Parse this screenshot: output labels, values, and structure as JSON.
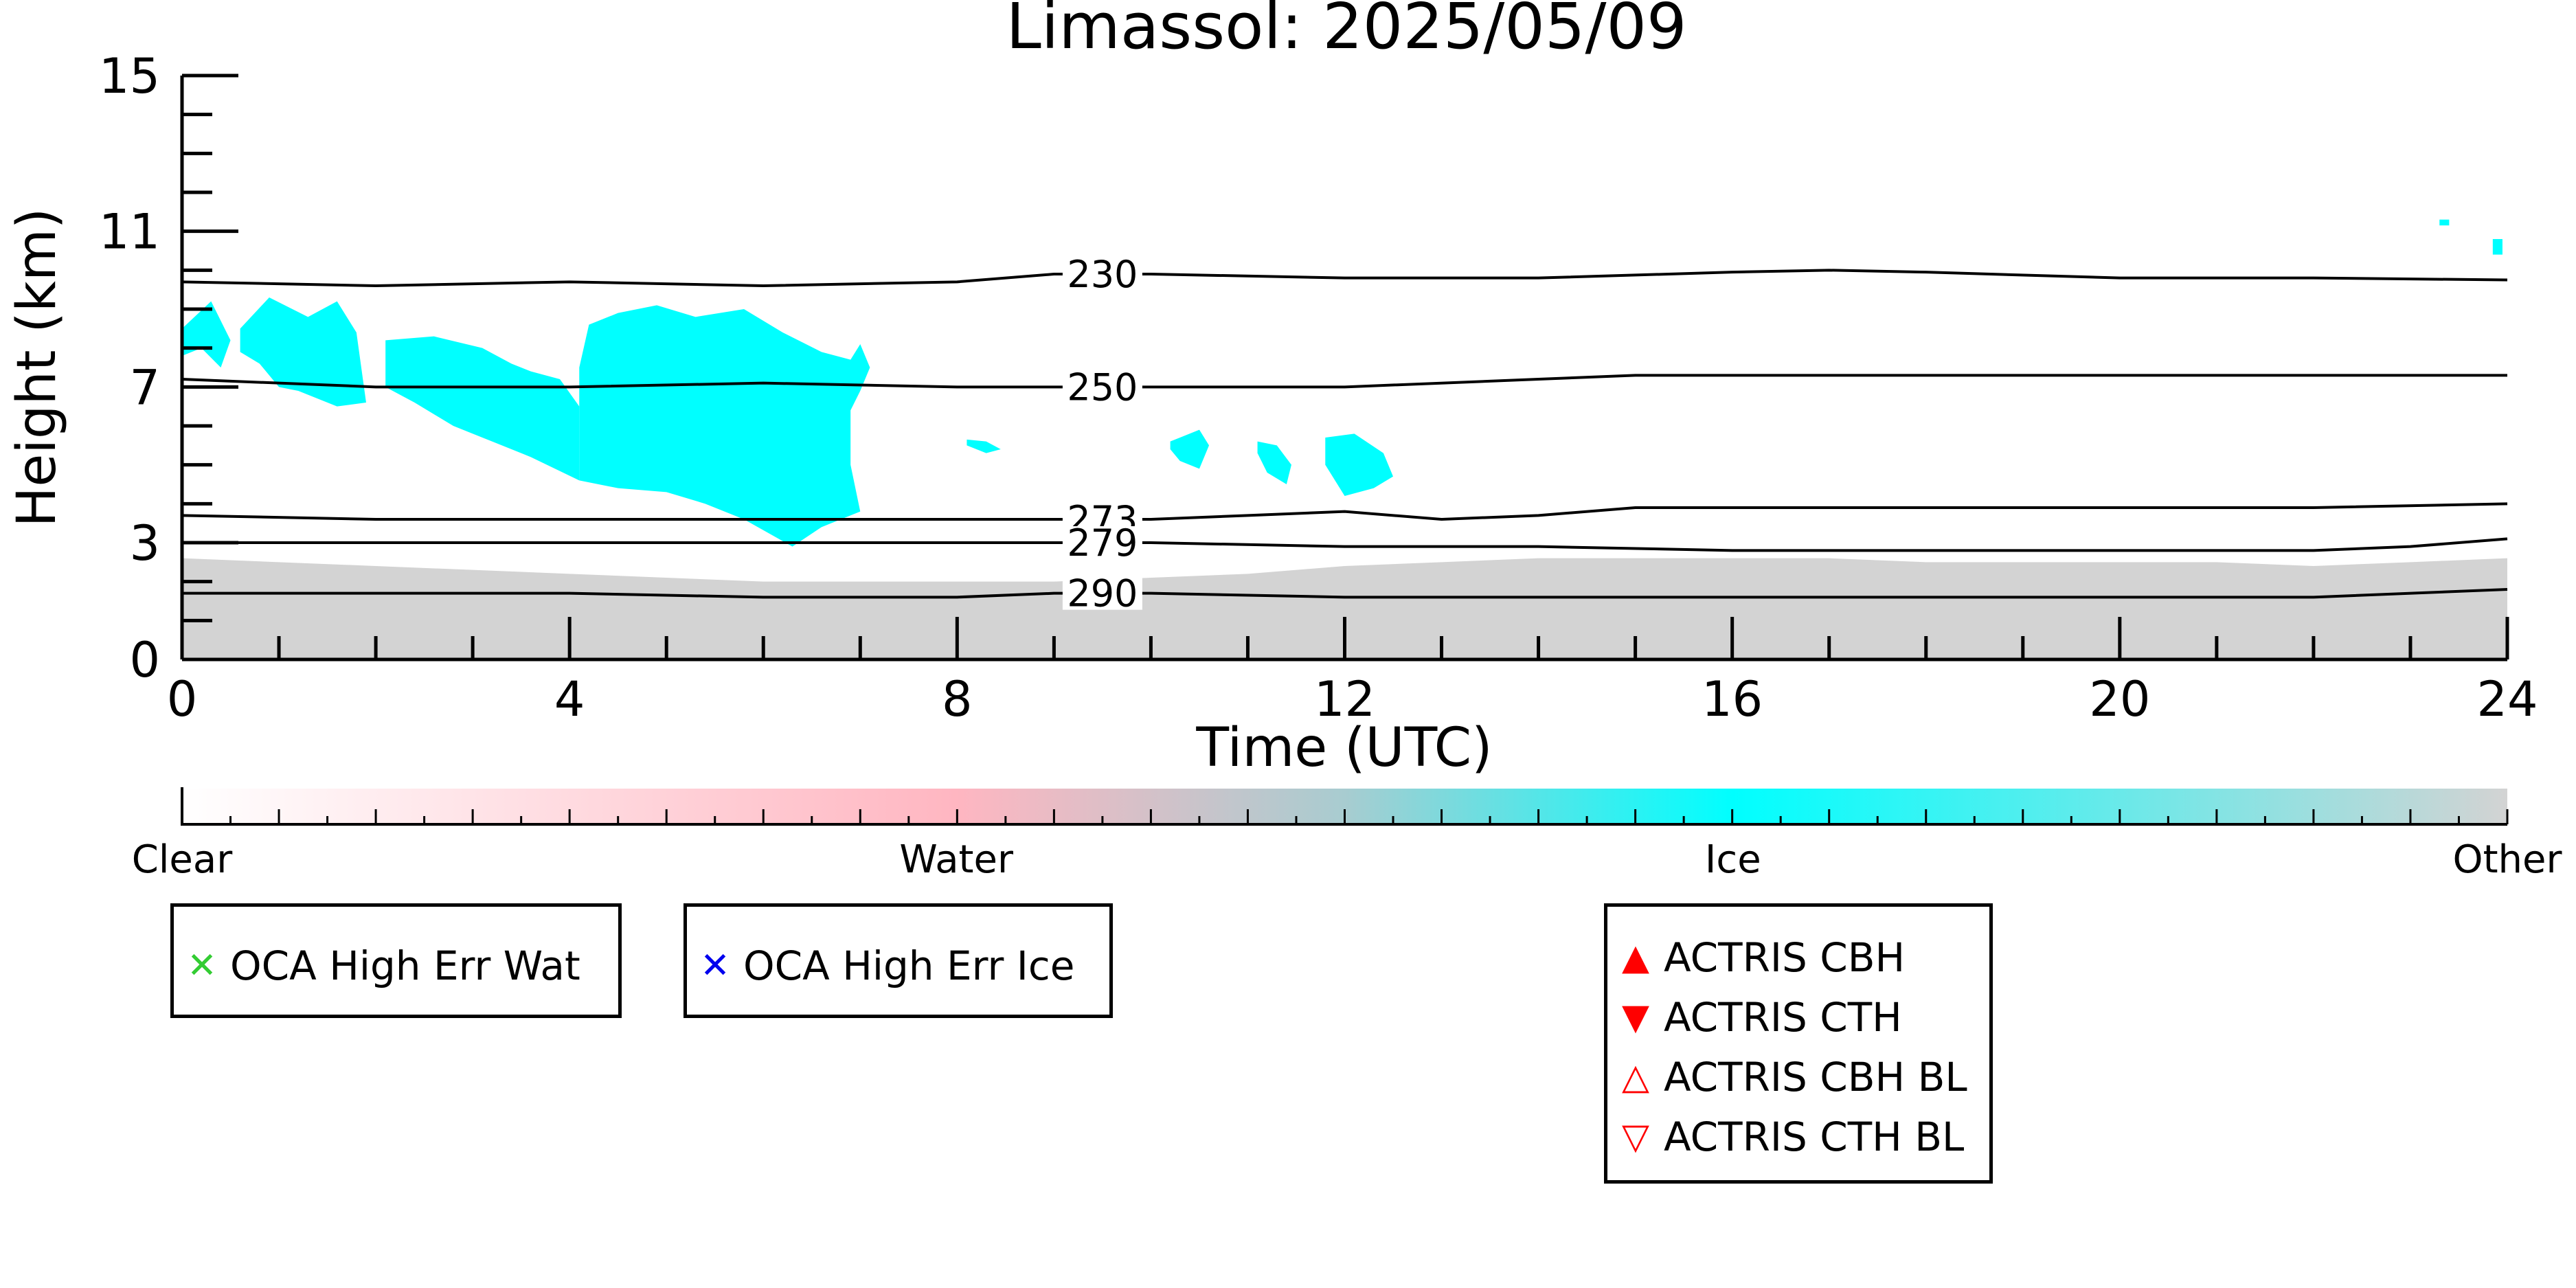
{
  "chart_data": {
    "type": "area",
    "title": "Limassol: 2025/05/09",
    "xlabel": "Time (UTC)",
    "ylabel": "Height (km)",
    "xlim": [
      0,
      24
    ],
    "ylim": [
      0,
      15
    ],
    "x_ticks": [
      0,
      4,
      8,
      12,
      16,
      20,
      24
    ],
    "y_ticks": [
      0,
      3,
      7,
      11,
      15
    ],
    "x_minor_step": 1,
    "y_minor_step": 1,
    "classification_colors": {
      "clear": "#ffffff",
      "water": "#ffb6c1",
      "ice": "#00ffff",
      "other": "#d3d3d3"
    },
    "other_layer": {
      "series": "Other",
      "x": [
        0,
        1,
        2,
        3,
        4,
        5,
        6,
        7,
        8,
        9,
        10,
        11,
        12,
        13,
        14,
        15,
        16,
        17,
        18,
        19,
        20,
        21,
        22,
        23,
        24
      ],
      "y": [
        2.6,
        2.5,
        2.4,
        2.3,
        2.2,
        2.1,
        2.0,
        2.0,
        2.0,
        2.0,
        2.1,
        2.2,
        2.4,
        2.5,
        2.6,
        2.6,
        2.6,
        2.6,
        2.5,
        2.5,
        2.5,
        2.5,
        2.4,
        2.5,
        2.6
      ]
    },
    "ice_clouds": [
      {
        "x": [
          0,
          0.3,
          0.5,
          0.4,
          0.2,
          0
        ],
        "y": [
          8.5,
          9.2,
          8.2,
          7.5,
          8.0,
          7.8
        ]
      },
      {
        "x": [
          0.6,
          0.9,
          1.3,
          1.6,
          1.8,
          1.9,
          1.6,
          1.2,
          1.0,
          0.8,
          0.6
        ],
        "y": [
          8.5,
          9.3,
          8.8,
          9.2,
          8.4,
          6.6,
          6.5,
          6.9,
          7.0,
          7.6,
          7.9
        ]
      },
      {
        "x": [
          2.1,
          2.6,
          3.1,
          3.4,
          3.6,
          3.9,
          4.1,
          4.1,
          3.6,
          3.2,
          2.8,
          2.4,
          2.1
        ],
        "y": [
          8.2,
          8.3,
          8.0,
          7.6,
          7.4,
          7.2,
          6.5,
          4.6,
          5.2,
          5.6,
          6.0,
          6.6,
          7.0
        ]
      },
      {
        "x": [
          4.1,
          4.2,
          4.5,
          4.9,
          5.3,
          5.8,
          6.2,
          6.6,
          6.9,
          7.0,
          7.1,
          7.0,
          6.9,
          6.9,
          7.0,
          6.6,
          6.3,
          5.8,
          5.4,
          5.0,
          4.5,
          4.1
        ],
        "y": [
          7.5,
          8.6,
          8.9,
          9.1,
          8.8,
          9.0,
          8.4,
          7.9,
          7.7,
          8.1,
          7.5,
          6.9,
          6.4,
          5.0,
          3.8,
          3.4,
          2.9,
          3.6,
          4.0,
          4.3,
          4.4,
          4.6
        ]
      },
      {
        "x": [
          8.1,
          8.3,
          8.45,
          8.3,
          8.1
        ],
        "y": [
          5.65,
          5.6,
          5.4,
          5.3,
          5.5
        ]
      },
      {
        "x": [
          10.2,
          10.5,
          10.6,
          10.5,
          10.3,
          10.2
        ],
        "y": [
          5.6,
          5.9,
          5.5,
          4.9,
          5.1,
          5.4
        ]
      },
      {
        "x": [
          11.1,
          11.3,
          11.45,
          11.4,
          11.2,
          11.1
        ],
        "y": [
          5.6,
          5.5,
          5.0,
          4.5,
          4.8,
          5.3
        ]
      },
      {
        "x": [
          11.8,
          12.1,
          12.4,
          12.5,
          12.3,
          12.0,
          11.8
        ],
        "y": [
          5.7,
          5.8,
          5.3,
          4.7,
          4.4,
          4.2,
          5.0
        ]
      },
      {
        "x": [
          23.85,
          23.95,
          23.95,
          23.85
        ],
        "y": [
          10.8,
          10.8,
          10.4,
          10.4
        ]
      },
      {
        "x": [
          23.3,
          23.4,
          23.4,
          23.3
        ],
        "y": [
          11.3,
          11.3,
          11.15,
          11.15
        ]
      }
    ],
    "isotherms": [
      {
        "name": "230",
        "x": [
          0,
          2,
          4,
          6,
          8,
          9,
          10,
          12,
          14,
          16,
          17,
          18,
          20,
          22,
          24
        ],
        "y": [
          9.7,
          9.6,
          9.7,
          9.6,
          9.7,
          9.9,
          9.9,
          9.8,
          9.8,
          9.95,
          10.0,
          9.95,
          9.8,
          9.8,
          9.75
        ],
        "label_x": 9.5
      },
      {
        "name": "250",
        "x": [
          0,
          2,
          4,
          6,
          8,
          10,
          12,
          14,
          15,
          16,
          18,
          20,
          22,
          24
        ],
        "y": [
          7.2,
          7.0,
          7.0,
          7.1,
          7.0,
          7.0,
          7.0,
          7.2,
          7.3,
          7.3,
          7.3,
          7.3,
          7.3,
          7.3
        ],
        "label_x": 9.5
      },
      {
        "name": "273",
        "x": [
          0,
          2,
          4,
          6,
          8,
          10,
          11,
          12,
          13,
          14,
          15,
          16,
          18,
          20,
          22,
          24
        ],
        "y": [
          3.7,
          3.6,
          3.6,
          3.6,
          3.6,
          3.6,
          3.7,
          3.8,
          3.6,
          3.7,
          3.9,
          3.9,
          3.9,
          3.9,
          3.9,
          4.0
        ],
        "label_x": 9.5
      },
      {
        "name": "279",
        "x": [
          0,
          2,
          4,
          6,
          8,
          10,
          12,
          14,
          16,
          18,
          20,
          22,
          23,
          24
        ],
        "y": [
          3.0,
          3.0,
          3.0,
          3.0,
          3.0,
          3.0,
          2.9,
          2.9,
          2.8,
          2.8,
          2.8,
          2.8,
          2.9,
          3.1
        ],
        "label_x": 9.5
      },
      {
        "name": "290",
        "x": [
          0,
          2,
          4,
          6,
          8,
          9,
          10,
          12,
          14,
          16,
          18,
          20,
          22,
          24
        ],
        "y": [
          1.7,
          1.7,
          1.7,
          1.6,
          1.6,
          1.7,
          1.7,
          1.6,
          1.6,
          1.6,
          1.6,
          1.6,
          1.6,
          1.8
        ],
        "label_x": 9.5
      }
    ],
    "colorbar": {
      "labels": [
        "Clear",
        "Water",
        "Ice",
        "Other"
      ],
      "stops": [
        0,
        0.333,
        0.667,
        1
      ]
    }
  },
  "legend_oca_water": {
    "label": "OCA High Err Wat",
    "symbol": "✕",
    "color": "#33cc33"
  },
  "legend_oca_ice": {
    "label": "OCA High Err Ice",
    "symbol": "✕",
    "color": "#0000ee"
  },
  "legend_actris": [
    {
      "label": "ACTRIS CBH",
      "symbol": "▲",
      "color": "#ff0000"
    },
    {
      "label": "ACTRIS CTH",
      "symbol": "▼",
      "color": "#ff0000"
    },
    {
      "label": "ACTRIS CBH BL",
      "symbol": "△",
      "color": "#ff0000"
    },
    {
      "label": "ACTRIS CTH BL",
      "symbol": "▽",
      "color": "#ff0000"
    }
  ]
}
